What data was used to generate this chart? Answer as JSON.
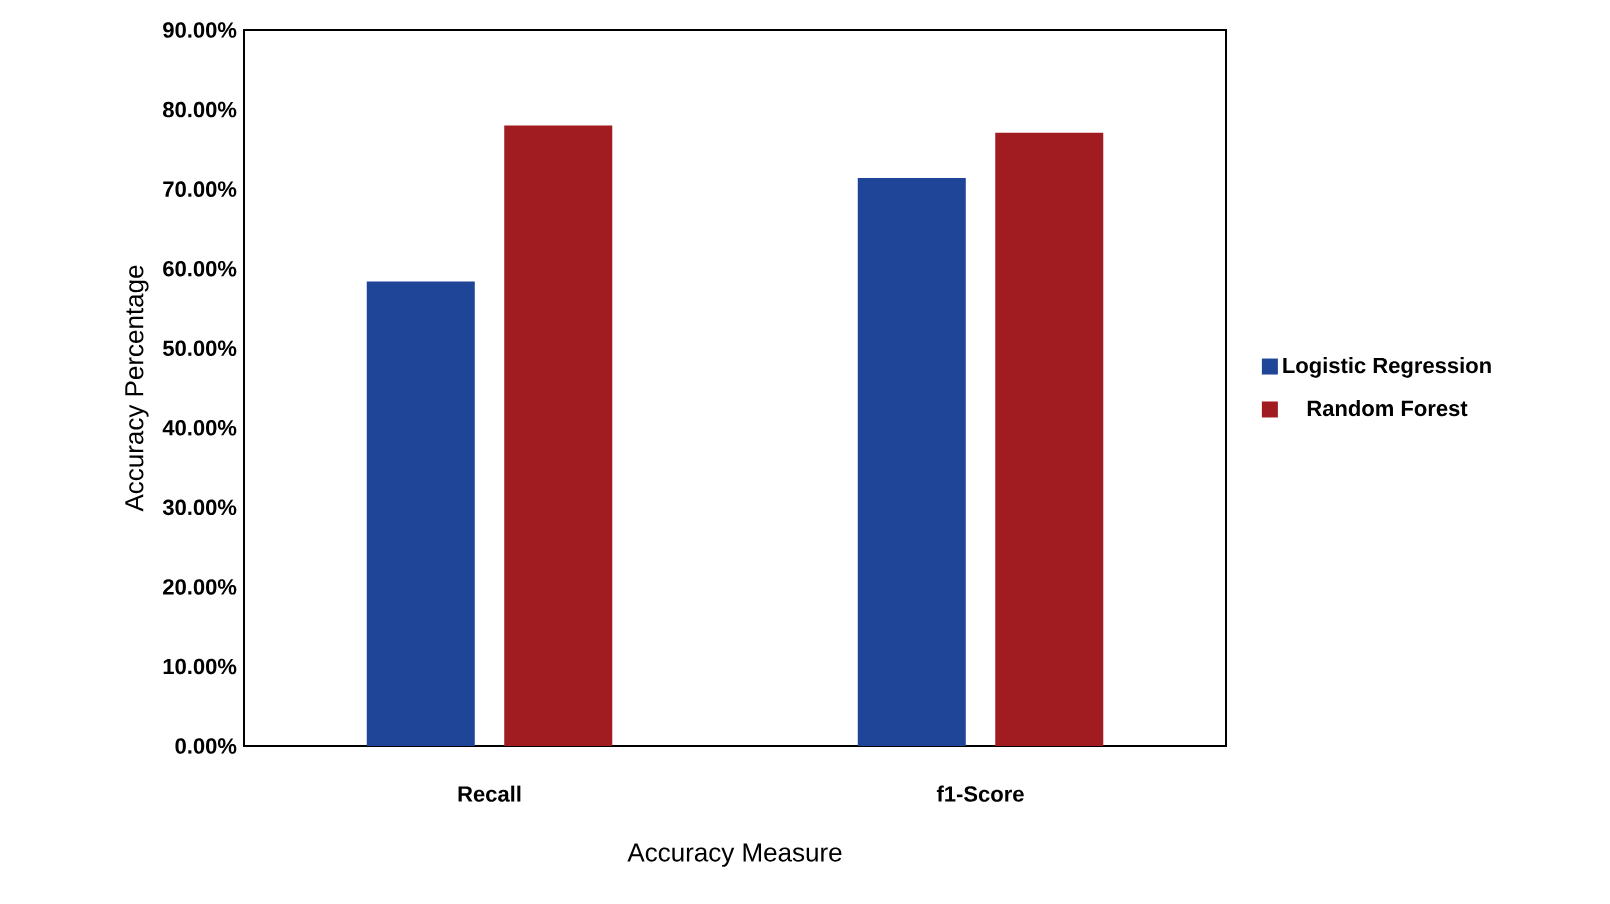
{
  "chart_data": {
    "type": "bar",
    "xlabel": "Accuracy Measure",
    "ylabel": "Accuracy Percentage",
    "categories": [
      "Recall",
      "f1-Score"
    ],
    "series": [
      {
        "name": "Logistic Regression",
        "color": "#1f4599",
        "values": [
          58.4,
          71.4
        ]
      },
      {
        "name": "Random Forest",
        "color": "#a01c20",
        "values": [
          78.0,
          77.1
        ]
      }
    ],
    "ylim": [
      0,
      90
    ],
    "yticks": [
      {
        "value": 0,
        "label": "0.00%"
      },
      {
        "value": 10,
        "label": "10.00%"
      },
      {
        "value": 20,
        "label": "20.00%"
      },
      {
        "value": 30,
        "label": "30.00%"
      },
      {
        "value": 40,
        "label": "40.00%"
      },
      {
        "value": 50,
        "label": "50.00%"
      },
      {
        "value": 60,
        "label": "60.00%"
      },
      {
        "value": 70,
        "label": "70.00%"
      },
      {
        "value": 80,
        "label": "80.00%"
      },
      {
        "value": 90,
        "label": "90.00%"
      }
    ],
    "grid": false,
    "legend": "right"
  }
}
